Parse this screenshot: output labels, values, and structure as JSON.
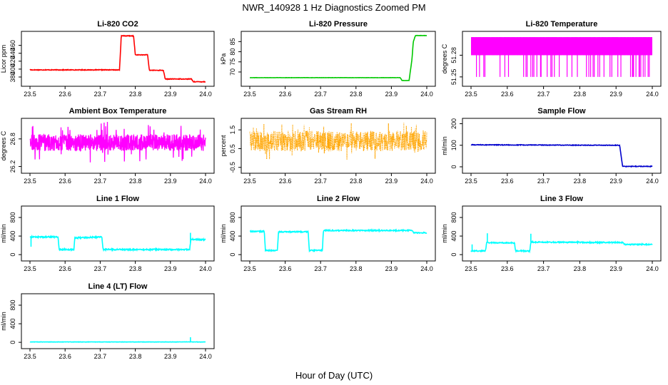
{
  "figure": {
    "title": "NWR_140928  1 Hz Diagnostics Zoomed PM",
    "xlabel": "Hour of Day (UTC)"
  },
  "chart_data": [
    {
      "type": "line",
      "title": "Li-820 CO2",
      "ylabel": "Licor ppm",
      "xlim": [
        23.5,
        24.0
      ],
      "ylim": [
        362,
        490
      ],
      "yticks": [
        380,
        400,
        420,
        440,
        460
      ],
      "xticks": [
        "23.5",
        "23.6",
        "23.7",
        "23.8",
        "23.9",
        "24.0"
      ],
      "color": "#ff0000",
      "noise": 0.8,
      "spikes": [
        [
          23.96,
          377
        ]
      ],
      "series": [
        {
          "name": "CO2",
          "points": [
            [
              23.5,
              398
            ],
            [
              23.755,
              398
            ],
            [
              23.76,
              484
            ],
            [
              23.795,
              484
            ],
            [
              23.8,
              436
            ],
            [
              23.835,
              436
            ],
            [
              23.84,
              397
            ],
            [
              23.88,
              397
            ],
            [
              23.885,
              375
            ],
            [
              23.96,
              375
            ],
            [
              23.965,
              368
            ],
            [
              24.0,
              368
            ]
          ]
        }
      ]
    },
    {
      "type": "line",
      "title": "Li-820 Pressure",
      "ylabel": "kPa",
      "xlim": [
        23.5,
        24.0
      ],
      "ylim": [
        64,
        89
      ],
      "yticks": [
        70,
        75,
        80,
        85
      ],
      "xticks": [
        "23.5",
        "23.6",
        "23.7",
        "23.8",
        "23.9",
        "24.0"
      ],
      "color": "#00c800",
      "noise": 0.05,
      "series": [
        {
          "name": "Pressure",
          "points": [
            [
              23.5,
              67.2
            ],
            [
              23.925,
              67.2
            ],
            [
              23.93,
              65.8
            ],
            [
              23.95,
              65.8
            ],
            [
              23.958,
              76
            ],
            [
              23.962,
              85
            ],
            [
              23.968,
              88
            ],
            [
              24.0,
              88
            ]
          ]
        }
      ]
    },
    {
      "type": "line",
      "title": "Li-820 Temperature",
      "ylabel": "degrees C",
      "xlim": [
        23.5,
        24.0
      ],
      "ylim": [
        51.24,
        51.31
      ],
      "yticks": [
        51.25,
        51.28
      ],
      "xticks": [
        "23.5",
        "23.6",
        "23.7",
        "23.8",
        "23.9",
        "24.0"
      ],
      "color": "#ff00ff",
      "noise": 0,
      "pattern": "flicker",
      "hi": 51.305,
      "mid": 51.28,
      "lo": 51.25
    },
    {
      "type": "line",
      "title": "Ambient Box Temperature",
      "ylabel": "degrees C",
      "xlim": [
        23.5,
        24.0
      ],
      "ylim": [
        26.1,
        27.2
      ],
      "yticks": [
        26.2,
        26.8
      ],
      "xticks": [
        "23.5",
        "23.6",
        "23.7",
        "23.8",
        "23.9",
        "24.0"
      ],
      "color": "#ff00ff",
      "noise": 0,
      "pattern": "band",
      "center": 26.72,
      "amp": 0.18,
      "spikeAmp": 0.45
    },
    {
      "type": "line",
      "title": "Gas Stream RH",
      "ylabel": "percent",
      "xlim": [
        23.5,
        24.0
      ],
      "ylim": [
        -0.7,
        2.0
      ],
      "yticks": [
        -0.5,
        0.5,
        1.5
      ],
      "xticks": [
        "23.5",
        "23.6",
        "23.7",
        "23.8",
        "23.9",
        "24.0"
      ],
      "color": "#ffa500",
      "noise": 0,
      "pattern": "dots",
      "center": 0.9,
      "amp": 0.55,
      "spikeAmp": 1.0
    },
    {
      "type": "line",
      "title": "Sample Flow",
      "ylabel": "ml/min",
      "xlim": [
        23.5,
        24.0
      ],
      "ylim": [
        -20,
        215
      ],
      "yticks": [
        0,
        100,
        200
      ],
      "xticks": [
        "23.5",
        "23.6",
        "23.7",
        "23.8",
        "23.9",
        "24.0"
      ],
      "color": "#0000cd",
      "noise": 1.5,
      "series": [
        {
          "name": "Sample Flow",
          "points": [
            [
              23.5,
              102
            ],
            [
              23.91,
              100
            ],
            [
              23.918,
              2
            ],
            [
              24.0,
              2
            ]
          ]
        }
      ]
    },
    {
      "type": "line",
      "title": "Line 1 Flow",
      "ylabel": "ml/min",
      "xlim": [
        23.5,
        24.0
      ],
      "ylim": [
        -90,
        1000
      ],
      "yticks": [
        0,
        400,
        800
      ],
      "xticks": [
        "23.5",
        "23.6",
        "23.7",
        "23.8",
        "23.9",
        "24.0"
      ],
      "color": "#00ffff",
      "noise": 14,
      "spikes": [
        [
          23.503,
          170
        ],
        [
          23.957,
          470
        ]
      ],
      "series": [
        {
          "name": "Line 1",
          "points": [
            [
              23.5,
              380
            ],
            [
              23.58,
              380
            ],
            [
              23.583,
              110
            ],
            [
              23.625,
              110
            ],
            [
              23.628,
              360
            ],
            [
              23.705,
              380
            ],
            [
              23.708,
              110
            ],
            [
              23.955,
              110
            ],
            [
              23.958,
              330
            ],
            [
              24.0,
              320
            ]
          ]
        }
      ]
    },
    {
      "type": "line",
      "title": "Line 2 Flow",
      "ylabel": "ml/min",
      "xlim": [
        23.5,
        24.0
      ],
      "ylim": [
        -90,
        1000
      ],
      "yticks": [
        0,
        400,
        800
      ],
      "xticks": [
        "23.5",
        "23.6",
        "23.7",
        "23.8",
        "23.9",
        "24.0"
      ],
      "color": "#00ffff",
      "noise": 12,
      "series": [
        {
          "name": "Line 2",
          "points": [
            [
              23.5,
              500
            ],
            [
              23.541,
              500
            ],
            [
              23.544,
              90
            ],
            [
              23.578,
              90
            ],
            [
              23.581,
              490
            ],
            [
              23.665,
              490
            ],
            [
              23.668,
              90
            ],
            [
              23.705,
              90
            ],
            [
              23.708,
              520
            ],
            [
              23.96,
              520
            ],
            [
              23.963,
              470
            ],
            [
              24.0,
              470
            ]
          ]
        }
      ]
    },
    {
      "type": "line",
      "title": "Line 3 Flow",
      "ylabel": "ml/min",
      "xlim": [
        23.5,
        24.0
      ],
      "ylim": [
        -90,
        1000
      ],
      "yticks": [
        0,
        400,
        800
      ],
      "xticks": [
        "23.5",
        "23.6",
        "23.7",
        "23.8",
        "23.9",
        "24.0"
      ],
      "color": "#00ffff",
      "noise": 12,
      "spikes": [
        [
          23.503,
          220
        ],
        [
          23.545,
          460
        ],
        [
          23.665,
          450
        ]
      ],
      "series": [
        {
          "name": "Line 3",
          "points": [
            [
              23.5,
              80
            ],
            [
              23.54,
              80
            ],
            [
              23.543,
              260
            ],
            [
              23.62,
              250
            ],
            [
              23.623,
              80
            ],
            [
              23.662,
              80
            ],
            [
              23.665,
              270
            ],
            [
              23.92,
              260
            ],
            [
              23.923,
              220
            ],
            [
              24.0,
              220
            ]
          ]
        }
      ]
    },
    {
      "type": "line",
      "title": "Line 4 (LT) Flow",
      "ylabel": "ml/min",
      "xlim": [
        23.5,
        24.0
      ],
      "ylim": [
        -90,
        1000
      ],
      "yticks": [
        0,
        400,
        800
      ],
      "xticks": [
        "23.5",
        "23.6",
        "23.7",
        "23.8",
        "23.9",
        "24.0"
      ],
      "color": "#00ffff",
      "noise": 3,
      "spikes": [
        [
          23.957,
          110
        ]
      ],
      "series": [
        {
          "name": "Line 4 (LT)",
          "points": [
            [
              23.5,
              8
            ],
            [
              24.0,
              8
            ]
          ]
        }
      ]
    }
  ]
}
